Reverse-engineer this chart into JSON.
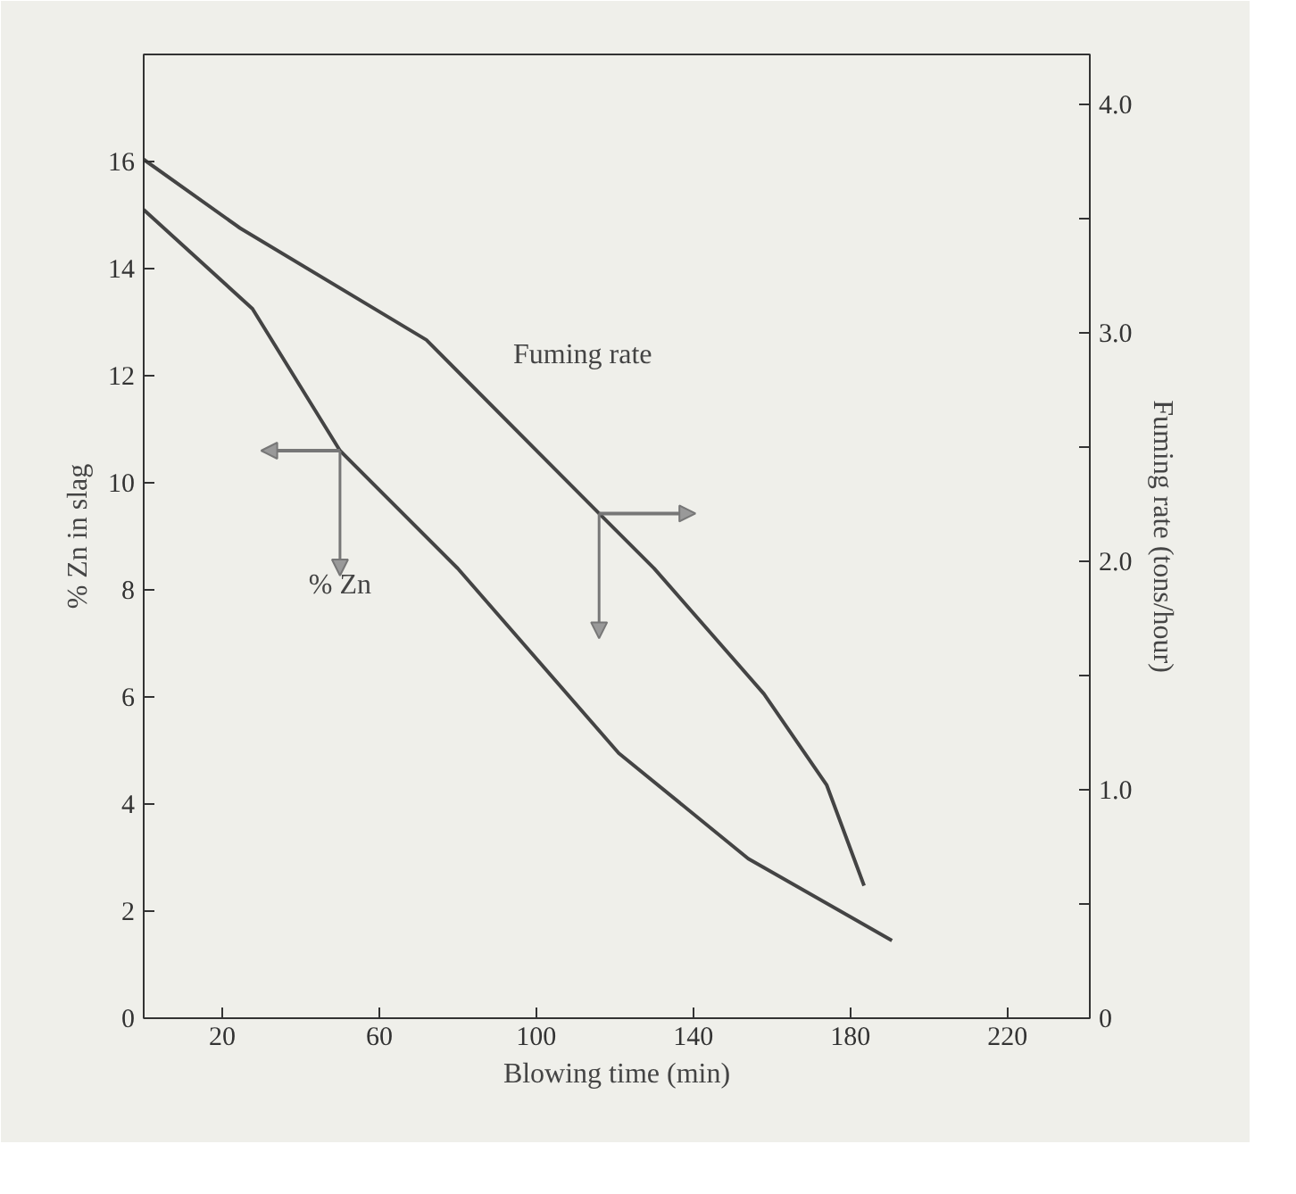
{
  "chart_data": {
    "type": "line",
    "xlabel": "Blowing time (min)",
    "ylabel": "% Zn in slag",
    "y2label": "Fuming rate (tons/hour)",
    "xlim": [
      0,
      241
    ],
    "xticks": [
      20,
      60,
      100,
      140,
      180,
      220
    ],
    "ylim": [
      0,
      18
    ],
    "yticks": [
      0,
      2,
      4,
      6,
      8,
      10,
      12,
      14,
      16
    ],
    "y2lim": [
      0,
      4.22
    ],
    "y2ticks": [
      0,
      {
        "value": 0.5,
        "label": null
      },
      {
        "value": 1.0,
        "label": "1.0"
      },
      {
        "value": 1.5,
        "label": null
      },
      {
        "value": 2.0,
        "label": "2.0"
      },
      {
        "value": 2.5,
        "label": null
      },
      {
        "value": 3.0,
        "label": "3.0"
      },
      {
        "value": 3.5,
        "label": null
      },
      {
        "value": 4.0,
        "label": "4.0"
      }
    ],
    "grid": false,
    "legend": false,
    "marker": "none",
    "line_style": "solid",
    "series": [
      {
        "name": "% Zn",
        "color": "#444444",
        "x": [
          0,
          27.7,
          50,
          80,
          121,
          154,
          190.6
        ],
        "values": [
          15.1,
          13.25,
          10.6,
          8.4,
          4.95,
          2.98,
          1.45
        ]
      },
      {
        "name": "Fuming rate",
        "color": "#444444",
        "axis": "y2",
        "x": [
          0,
          24.5,
          72,
          116,
          130,
          158,
          174,
          183.5
        ],
        "values": [
          3.76,
          3.46,
          2.97,
          2.21,
          1.97,
          1.42,
          1.02,
          0.58
        ]
      }
    ]
  }
}
